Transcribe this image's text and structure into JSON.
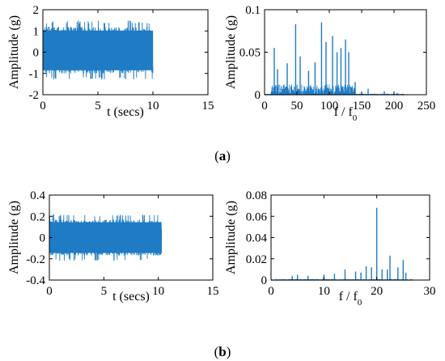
{
  "captions": [
    {
      "open": "(",
      "letter": "a",
      "close": ")"
    },
    {
      "open": "(",
      "letter": "b",
      "close": ")"
    }
  ],
  "colors": {
    "signal": "#1f7bc4",
    "axis": "#000000"
  },
  "chart_data": [
    {
      "id": "a-time",
      "type": "line",
      "title": "",
      "xlabel": "t (secs)",
      "ylabel": "Amplitude (g)",
      "xlim": [
        0,
        15
      ],
      "ylim": [
        -2,
        2
      ],
      "xticks": [
        0,
        5,
        10,
        15
      ],
      "yticks": [
        -2,
        -1,
        0,
        1,
        2
      ],
      "grid": false,
      "signal": {
        "t_start": 0,
        "t_end": 10,
        "envelope_min": -1.3,
        "envelope_max": 1.5,
        "typical_band": [
          -1.0,
          1.2
        ]
      }
    },
    {
      "id": "a-spectrum",
      "type": "line",
      "title": "",
      "xlabel_main": "f / f",
      "xlabel_sub": "0",
      "ylabel": "Amplitude (g)",
      "xlim": [
        0,
        250
      ],
      "ylim": [
        0,
        0.1
      ],
      "xticks": [
        0,
        50,
        100,
        150,
        200,
        250
      ],
      "yticks": [
        0,
        0.05,
        0.1
      ],
      "grid": false,
      "peaks": [
        {
          "x": 15,
          "y": 0.055
        },
        {
          "x": 20,
          "y": 0.03
        },
        {
          "x": 35,
          "y": 0.037
        },
        {
          "x": 48,
          "y": 0.083
        },
        {
          "x": 55,
          "y": 0.045
        },
        {
          "x": 68,
          "y": 0.028
        },
        {
          "x": 78,
          "y": 0.038
        },
        {
          "x": 88,
          "y": 0.085
        },
        {
          "x": 95,
          "y": 0.062
        },
        {
          "x": 105,
          "y": 0.069
        },
        {
          "x": 112,
          "y": 0.05
        },
        {
          "x": 118,
          "y": 0.055
        },
        {
          "x": 125,
          "y": 0.065
        },
        {
          "x": 130,
          "y": 0.05
        },
        {
          "x": 140,
          "y": 0.015
        },
        {
          "x": 160,
          "y": 0.007
        },
        {
          "x": 185,
          "y": 0.004
        },
        {
          "x": 205,
          "y": 0.002
        }
      ]
    },
    {
      "id": "b-time",
      "type": "line",
      "title": "",
      "xlabel": "t (secs)",
      "ylabel": "Amplitude (g)",
      "xlim": [
        0,
        15
      ],
      "ylim": [
        -0.4,
        0.4
      ],
      "xticks": [
        0,
        5,
        10,
        15
      ],
      "yticks": [
        -0.4,
        -0.2,
        0,
        0.2,
        0.4
      ],
      "grid": false,
      "signal": {
        "t_start": 0,
        "t_end": 10.3,
        "envelope_min": -0.22,
        "envelope_max": 0.22,
        "typical_band": [
          -0.17,
          0.17
        ]
      }
    },
    {
      "id": "b-spectrum",
      "type": "line",
      "title": "",
      "xlabel_main": "f / f",
      "xlabel_sub": "0",
      "ylabel": "Amplitude (g)",
      "xlim": [
        0,
        30
      ],
      "ylim": [
        0,
        0.08
      ],
      "xticks": [
        0,
        10,
        20,
        30
      ],
      "yticks": [
        0,
        0.02,
        0.04,
        0.06,
        0.08
      ],
      "grid": false,
      "peaks": [
        {
          "x": 4.0,
          "y": 0.004
        },
        {
          "x": 5.0,
          "y": 0.005
        },
        {
          "x": 7.0,
          "y": 0.004
        },
        {
          "x": 10.0,
          "y": 0.005
        },
        {
          "x": 12.0,
          "y": 0.006
        },
        {
          "x": 14.0,
          "y": 0.01
        },
        {
          "x": 16.0,
          "y": 0.008
        },
        {
          "x": 17.0,
          "y": 0.007
        },
        {
          "x": 18.0,
          "y": 0.013
        },
        {
          "x": 19.0,
          "y": 0.012
        },
        {
          "x": 20.0,
          "y": 0.068
        },
        {
          "x": 21.0,
          "y": 0.01
        },
        {
          "x": 22.0,
          "y": 0.01
        },
        {
          "x": 22.5,
          "y": 0.023
        },
        {
          "x": 24.0,
          "y": 0.012
        },
        {
          "x": 25.0,
          "y": 0.019
        },
        {
          "x": 25.5,
          "y": 0.007
        }
      ]
    }
  ]
}
